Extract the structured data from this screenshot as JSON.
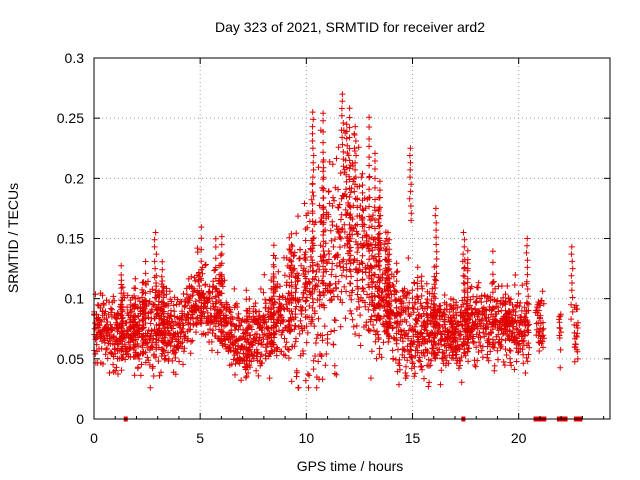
{
  "chart_data": {
    "type": "scatter",
    "title": "Day 323 of 2021, SRMTID for receiver ard2",
    "xlabel": "GPS time / hours",
    "ylabel": "SRMTID / TECUs",
    "xlim": [
      0,
      24.3
    ],
    "ylim": [
      0,
      0.3
    ],
    "grid": true,
    "marker": "+",
    "series_color": "#e00000",
    "x_ticks": [
      0,
      5,
      10,
      15,
      20
    ],
    "x_tick_labels": [
      "0",
      "5",
      "10",
      "15",
      "20"
    ],
    "y_ticks": [
      0,
      0.05,
      0.1,
      0.15,
      0.2,
      0.25,
      0.3
    ],
    "y_tick_labels": [
      "0",
      "0.05",
      "0.1",
      "0.15",
      "0.2",
      "0.25",
      "0.3"
    ],
    "profile": {
      "hours": [
        0,
        1,
        2,
        3,
        4,
        5,
        6,
        7,
        8,
        9,
        10,
        11,
        12,
        13,
        14,
        15,
        16,
        17,
        18,
        19,
        20,
        21,
        22,
        23
      ],
      "median": [
        0.075,
        0.07,
        0.072,
        0.08,
        0.07,
        0.1,
        0.085,
        0.06,
        0.075,
        0.09,
        0.105,
        0.13,
        0.145,
        0.12,
        0.085,
        0.075,
        0.075,
        0.07,
        0.08,
        0.08,
        0.075,
        0.08,
        0.075,
        0.07
      ],
      "spread": [
        0.02,
        0.022,
        0.02,
        0.03,
        0.02,
        0.025,
        0.02,
        0.018,
        0.025,
        0.03,
        0.055,
        0.06,
        0.055,
        0.05,
        0.03,
        0.03,
        0.025,
        0.022,
        0.022,
        0.022,
        0.022,
        0.025,
        0.02,
        0.02
      ],
      "gaps": [
        [
          20.5,
          20.7
        ],
        [
          21.3,
          21.8
        ],
        [
          22.1,
          22.5
        ],
        [
          22.9,
          24.3
        ]
      ],
      "columns": [
        [
          20.8,
          21.2
        ],
        [
          21.9,
          22.0
        ],
        [
          22.6,
          22.8
        ]
      ]
    },
    "peaks": [
      {
        "x": 10.3,
        "y": 0.255
      },
      {
        "x": 11.7,
        "y": 0.27
      },
      {
        "x": 11.9,
        "y": 0.245
      },
      {
        "x": 12.3,
        "y": 0.243
      },
      {
        "x": 14.9,
        "y": 0.225
      },
      {
        "x": 2.9,
        "y": 0.155
      },
      {
        "x": 16.1,
        "y": 0.175
      },
      {
        "x": 17.4,
        "y": 0.155
      },
      {
        "x": 20.4,
        "y": 0.15
      },
      {
        "x": 22.5,
        "y": 0.143
      }
    ],
    "zero_segments": [
      [
        1.4,
        1.5
      ],
      [
        17.3,
        17.4
      ],
      [
        20.7,
        21.3
      ],
      [
        21.8,
        22.3
      ],
      [
        22.6,
        23.0
      ]
    ]
  }
}
